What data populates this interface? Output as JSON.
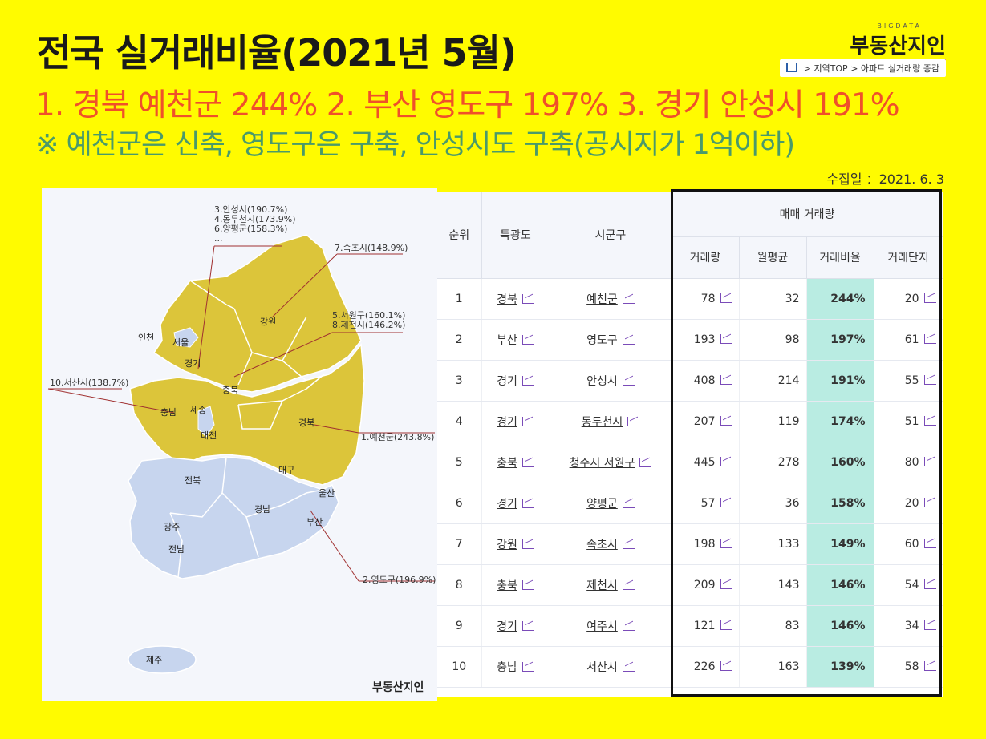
{
  "header": {
    "title": "전국 실거래비율(2021년 5월)",
    "subtitle1": "1. 경북 예천군 244%  2. 부산 영도구 197%  3. 경기 안성시 191%",
    "subtitle2": "※ 예천군은 신축, 영도구은 구축, 안성시도 구축(공시지가 1억이하)",
    "collected": "수집일 ：2021. 6. 3"
  },
  "logo": {
    "small": "BIGDATA",
    "main": "부동산",
    "accent": "지인"
  },
  "breadcrumb": {
    "items": [
      "지역TOP",
      "아파트 실거래량 증감"
    ]
  },
  "map": {
    "annotations": {
      "a1": "3.안성시(190.7%)",
      "a2": "4.동두천시(173.9%)",
      "a3": "6.양평군(158.3%)",
      "a4": "...",
      "a5": "7.속초시(148.9%)",
      "a6": "5.서원구(160.1%)",
      "a7": "8.제천시(146.2%)",
      "a8": "10.서산시(138.7%)",
      "a9": "1.예천군(243.8%)",
      "a10": "2.영도구(196.9%)"
    },
    "regions": {
      "incheon": "인천",
      "seoul": "서울",
      "gyeonggi": "경기",
      "gangwon": "강원",
      "chungbuk": "충북",
      "chungnam": "충남",
      "sejong": "세종",
      "daejeon": "대전",
      "gyeongbuk": "경북",
      "daegu": "대구",
      "jeonbuk": "전북",
      "ulsan": "울산",
      "gyeongnam": "경남",
      "busan": "부산",
      "gwangju": "광주",
      "jeonnam": "전남",
      "jeju": "제주"
    },
    "highlight_color": "#dcc53a",
    "base_color": "#c7d5ee"
  },
  "table": {
    "headers": {
      "rank": "순위",
      "province": "특광도",
      "city": "시군구",
      "group": "매매 거래량",
      "volume": "거래량",
      "monthly": "월평균",
      "ratio": "거래비율",
      "complex": "거래단지"
    },
    "rows": [
      {
        "rank": "1",
        "province": "경북",
        "city": "예천군",
        "volume": "78",
        "monthly": "32",
        "ratio": "244%",
        "complex": "20"
      },
      {
        "rank": "2",
        "province": "부산",
        "city": "영도구",
        "volume": "193",
        "monthly": "98",
        "ratio": "197%",
        "complex": "61"
      },
      {
        "rank": "3",
        "province": "경기",
        "city": "안성시",
        "volume": "408",
        "monthly": "214",
        "ratio": "191%",
        "complex": "55"
      },
      {
        "rank": "4",
        "province": "경기",
        "city": "동두천시",
        "volume": "207",
        "monthly": "119",
        "ratio": "174%",
        "complex": "51"
      },
      {
        "rank": "5",
        "province": "충북",
        "city": "청주시 서원구",
        "volume": "445",
        "monthly": "278",
        "ratio": "160%",
        "complex": "80"
      },
      {
        "rank": "6",
        "province": "경기",
        "city": "양평군",
        "volume": "57",
        "monthly": "36",
        "ratio": "158%",
        "complex": "20"
      },
      {
        "rank": "7",
        "province": "강원",
        "city": "속초시",
        "volume": "198",
        "monthly": "133",
        "ratio": "149%",
        "complex": "60"
      },
      {
        "rank": "8",
        "province": "충북",
        "city": "제천시",
        "volume": "209",
        "monthly": "143",
        "ratio": "146%",
        "complex": "54"
      },
      {
        "rank": "9",
        "province": "경기",
        "city": "여주시",
        "volume": "121",
        "monthly": "83",
        "ratio": "146%",
        "complex": "34"
      },
      {
        "rank": "10",
        "province": "충남",
        "city": "서산시",
        "volume": "226",
        "monthly": "163",
        "ratio": "139%",
        "complex": "58"
      }
    ]
  }
}
